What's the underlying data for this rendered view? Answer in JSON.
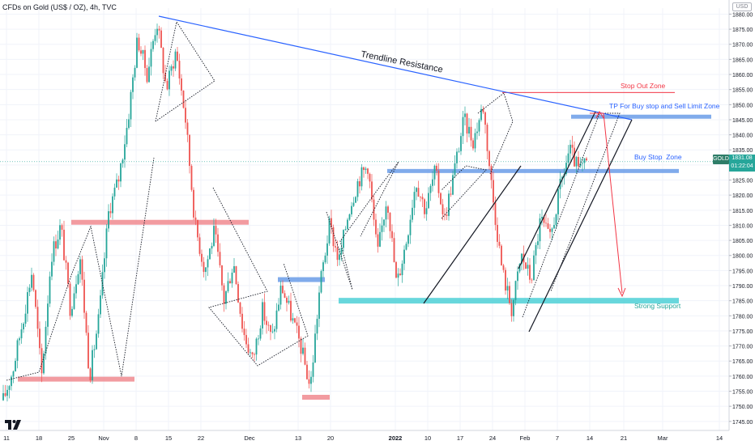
{
  "header": {
    "symbol_label": "CFDs on Gold (US$ / OZ), 4h, TVC",
    "currency": "USD"
  },
  "price_tag": {
    "symbol": "GOLD",
    "price": "1831.08",
    "countdown": "01:22:04"
  },
  "colors": {
    "up": "#26a69a",
    "down": "#ef5350",
    "trendline": "#2962ff",
    "blue_zone": "#6a9ce8",
    "teal_zone": "#4dd0d6",
    "red_zone": "#f08a8f",
    "annotation_red": "#f23645",
    "annotation_blue": "#2962ff",
    "support_text": "#26a69a"
  },
  "annotations": {
    "trendline_resistance": "Trendline Resistance",
    "stop_out_zone": "Stop Out Zone",
    "tp_zone": "TP For Buy stop and Sell Limit Zone",
    "buy_stop_zone": "Buy Stop  Zone",
    "strong_support": "Strong Support"
  },
  "chart_data": {
    "type": "candlestick",
    "timeframe": "4h",
    "ylim": [
      1742,
      1882
    ],
    "y_ticks": [
      1745,
      1750,
      1755,
      1760,
      1765,
      1770,
      1775,
      1780,
      1785,
      1790,
      1795,
      1800,
      1805,
      1810,
      1815,
      1820,
      1825,
      1830,
      1835,
      1840,
      1845,
      1850,
      1855,
      1860,
      1865,
      1870,
      1875,
      1880
    ],
    "x_ticks": [
      "11",
      "18",
      "25",
      "Nov",
      "8",
      "15",
      "22",
      "Dec",
      "13",
      "20",
      "2022",
      "10",
      "17",
      "24",
      "Feb",
      "7",
      "14",
      "21",
      "Mar",
      "14"
    ],
    "price_path": [
      [
        1762,
        1752
      ],
      [
        1778,
        1762
      ],
      [
        1795,
        1778
      ],
      [
        1760,
        1795
      ],
      [
        1800,
        1760
      ],
      [
        1810,
        1800
      ],
      [
        1782,
        1810
      ],
      [
        1800,
        1782
      ],
      [
        1760,
        1800
      ],
      [
        1780,
        1760
      ],
      [
        1815,
        1780
      ],
      [
        1825,
        1815
      ],
      [
        1845,
        1825
      ],
      [
        1872,
        1845
      ],
      [
        1860,
        1872
      ],
      [
        1878,
        1860
      ],
      [
        1855,
        1878
      ],
      [
        1868,
        1855
      ],
      [
        1845,
        1868
      ],
      [
        1810,
        1845
      ],
      [
        1795,
        1810
      ],
      [
        1808,
        1795
      ],
      [
        1785,
        1808
      ],
      [
        1798,
        1785
      ],
      [
        1775,
        1798
      ],
      [
        1765,
        1775
      ],
      [
        1782,
        1765
      ],
      [
        1772,
        1782
      ],
      [
        1790,
        1772
      ],
      [
        1780,
        1790
      ],
      [
        1770,
        1780
      ],
      [
        1756,
        1770
      ],
      [
        1790,
        1756
      ],
      [
        1810,
        1790
      ],
      [
        1798,
        1810
      ],
      [
        1815,
        1798
      ],
      [
        1825,
        1815
      ],
      [
        1830,
        1825
      ],
      [
        1800,
        1830
      ],
      [
        1820,
        1800
      ],
      [
        1790,
        1820
      ],
      [
        1805,
        1790
      ],
      [
        1825,
        1805
      ],
      [
        1815,
        1825
      ],
      [
        1828,
        1815
      ],
      [
        1812,
        1828
      ],
      [
        1828,
        1812
      ],
      [
        1845,
        1828
      ],
      [
        1838,
        1845
      ],
      [
        1850,
        1838
      ],
      [
        1820,
        1850
      ],
      [
        1795,
        1820
      ],
      [
        1782,
        1795
      ],
      [
        1800,
        1782
      ],
      [
        1792,
        1800
      ],
      [
        1812,
        1792
      ],
      [
        1805,
        1812
      ],
      [
        1822,
        1805
      ],
      [
        1835,
        1822
      ],
      [
        1828,
        1835
      ],
      [
        1831,
        1828
      ]
    ],
    "zones": [
      {
        "label": "Stop Out Zone",
        "price": 1854
      },
      {
        "label": "TP For Buy stop and Sell Limit Zone",
        "price": 1846
      },
      {
        "label": "Buy Stop  Zone",
        "price": 1828
      },
      {
        "label": "Strong Support",
        "price": 1785
      },
      {
        "label": "",
        "price": 1811
      },
      {
        "label": "",
        "price": 1792
      },
      {
        "label": "",
        "price": 1759
      },
      {
        "label": "",
        "price": 1753
      }
    ],
    "current_price": 1831.08
  }
}
